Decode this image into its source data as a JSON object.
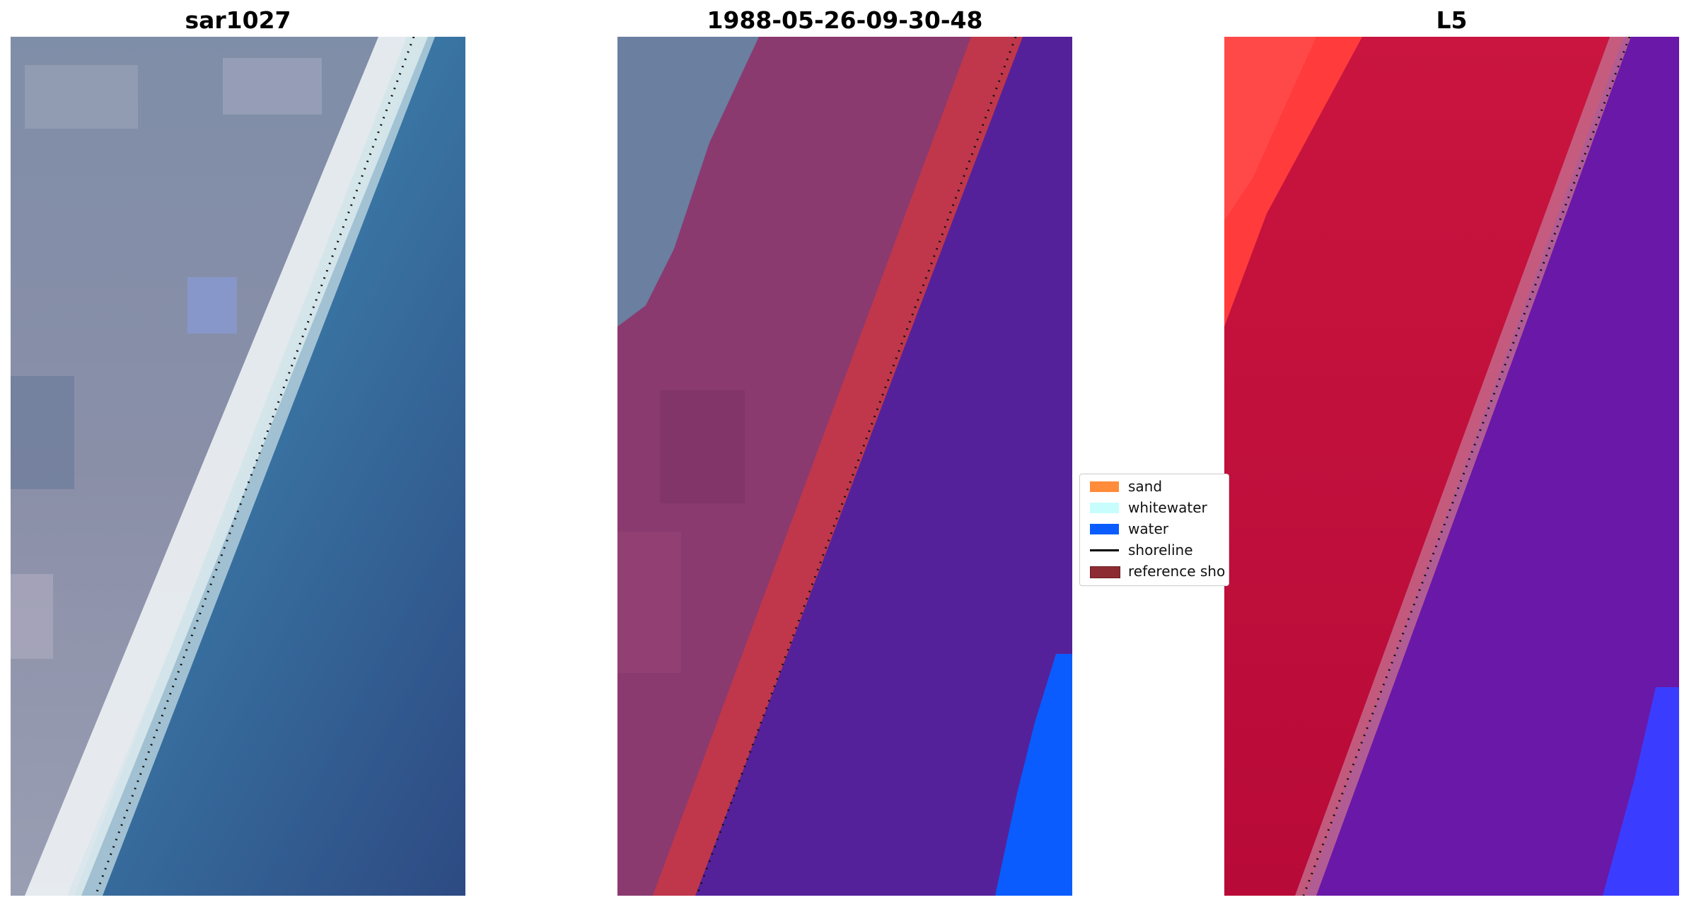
{
  "panels": [
    {
      "id": "rgb",
      "title": "sar1027"
    },
    {
      "id": "classified",
      "title": "1988-05-26-09-30-48"
    },
    {
      "id": "index",
      "title": "L5"
    }
  ],
  "legend": {
    "items": [
      {
        "label": "sand",
        "color": "#ff8c3a",
        "kind": "patch"
      },
      {
        "label": "whitewater",
        "color": "#c8fdfd",
        "kind": "patch"
      },
      {
        "label": "water",
        "color": "#0a5cff",
        "kind": "patch"
      },
      {
        "label": "shoreline",
        "color": "#000000",
        "kind": "line"
      },
      {
        "label": "reference sho",
        "color": "#8e2c33",
        "kind": "patch"
      }
    ]
  },
  "colors": {
    "land_grey": "#8b93ab",
    "water_teal": "#3f7fa8",
    "water_deep": "#2f4c85",
    "beach_white": "#eef3f5",
    "classified_land": "#8a3a6f",
    "classified_water": "#55219a",
    "classified_sand": "#c0374b",
    "classified_waterbright": "#0a5cff",
    "index_land": "#c5143a",
    "index_water": "#6a18a8",
    "index_bright": "#ff2a2a",
    "index_blue": "#3a3dff"
  }
}
